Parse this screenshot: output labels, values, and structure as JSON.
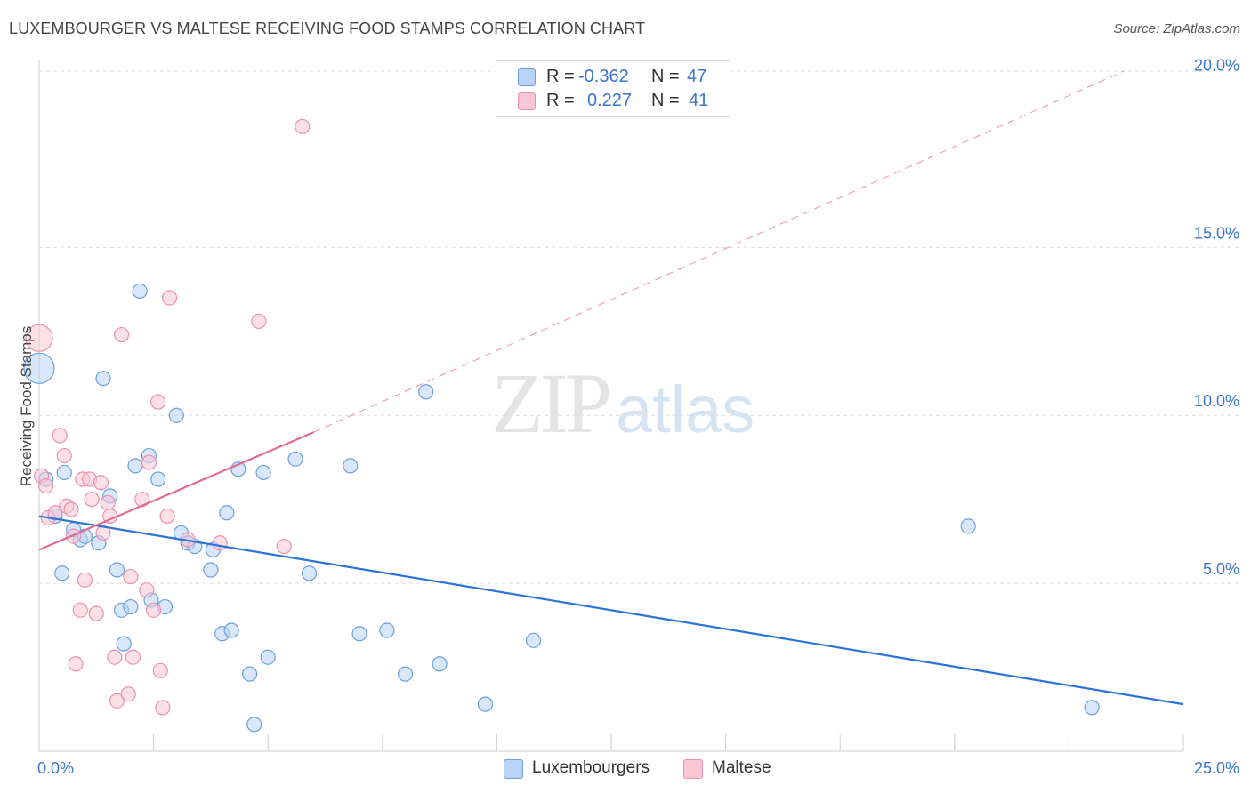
{
  "title": "LUXEMBOURGER VS MALTESE RECEIVING FOOD STAMPS CORRELATION CHART",
  "source": "Source: ZipAtlas.com",
  "watermark": {
    "zip": "ZIP",
    "atlas": "atlas"
  },
  "legend_top": [
    {
      "r_label": "R =",
      "r_value": "-0.362",
      "n_label": "N =",
      "n_value": "47"
    },
    {
      "r_label": "R =",
      "r_value": "0.227",
      "n_label": "N =",
      "n_value": "41"
    }
  ],
  "legend_bottom": [
    "Luxembourgers",
    "Maltese"
  ],
  "colors": {
    "blue_fill": "#b8d3f5",
    "blue_stroke": "#6b9fdf",
    "blue_line": "#2d72d6",
    "pink_fill": "#f8c6d5",
    "pink_stroke": "#ec91ad",
    "pink_line": "#e36a91",
    "axis_text": "#3a76d0",
    "grid": "#dcdcdc"
  },
  "chart_data": {
    "type": "scatter",
    "title": "LUXEMBOURGER VS MALTESE RECEIVING FOOD STAMPS CORRELATION CHART",
    "xlabel": "",
    "ylabel": "Receiving Food Stamps",
    "xlim": [
      0,
      25
    ],
    "ylim": [
      0,
      20.5
    ],
    "x_ticks": [
      0,
      2.5,
      5,
      7.5,
      10,
      12.5,
      15,
      17.5,
      20,
      22.5,
      25
    ],
    "x_tick_labels": [
      "0.0%",
      "",
      "",
      "",
      "",
      "",
      "",
      "",
      "",
      "",
      "25.0%"
    ],
    "y_ticks": [
      5,
      10,
      15,
      20
    ],
    "y_tick_labels": [
      "5.0%",
      "10.0%",
      "15.0%",
      "20.0%"
    ],
    "grid": true,
    "legend_position": "bottom",
    "series": [
      {
        "name": "Luxembourgers",
        "points": [
          [
            0.0,
            11.4,
            34
          ],
          [
            0.15,
            8.1,
            16
          ],
          [
            0.35,
            7.0,
            16
          ],
          [
            0.55,
            8.3,
            16
          ],
          [
            0.75,
            6.6,
            16
          ],
          [
            0.9,
            6.3,
            16
          ],
          [
            1.0,
            6.4,
            16
          ],
          [
            0.5,
            5.3,
            16
          ],
          [
            1.3,
            6.2,
            16
          ],
          [
            1.4,
            11.1,
            16
          ],
          [
            1.55,
            7.6,
            16
          ],
          [
            1.7,
            5.4,
            16
          ],
          [
            1.8,
            4.2,
            16
          ],
          [
            1.85,
            3.2,
            16
          ],
          [
            2.0,
            4.3,
            16
          ],
          [
            2.1,
            8.5,
            16
          ],
          [
            2.2,
            13.7,
            16
          ],
          [
            2.4,
            8.8,
            16
          ],
          [
            2.45,
            4.5,
            16
          ],
          [
            2.6,
            8.1,
            16
          ],
          [
            2.75,
            4.3,
            16
          ],
          [
            3.0,
            10.0,
            16
          ],
          [
            3.1,
            6.5,
            16
          ],
          [
            3.25,
            6.2,
            16
          ],
          [
            3.4,
            6.1,
            16
          ],
          [
            3.75,
            5.4,
            16
          ],
          [
            3.8,
            6.0,
            16
          ],
          [
            4.0,
            3.5,
            16
          ],
          [
            4.1,
            7.1,
            16
          ],
          [
            4.2,
            3.6,
            16
          ],
          [
            4.35,
            8.4,
            16
          ],
          [
            4.6,
            2.3,
            16
          ],
          [
            4.7,
            0.8,
            16
          ],
          [
            4.9,
            8.3,
            16
          ],
          [
            5.0,
            2.8,
            16
          ],
          [
            5.6,
            8.7,
            16
          ],
          [
            5.9,
            5.3,
            16
          ],
          [
            6.8,
            8.5,
            16
          ],
          [
            7.0,
            3.5,
            16
          ],
          [
            7.6,
            3.6,
            16
          ],
          [
            8.0,
            2.3,
            16
          ],
          [
            8.45,
            10.7,
            16
          ],
          [
            8.75,
            2.6,
            16
          ],
          [
            9.75,
            1.4,
            16
          ],
          [
            10.8,
            3.3,
            16
          ],
          [
            20.3,
            6.7,
            16
          ],
          [
            23.0,
            1.3,
            16
          ]
        ]
      },
      {
        "name": "Maltese",
        "points": [
          [
            0.0,
            12.3,
            30
          ],
          [
            0.05,
            8.2,
            16
          ],
          [
            0.15,
            7.9,
            16
          ],
          [
            0.2,
            6.95,
            16
          ],
          [
            0.35,
            7.1,
            16
          ],
          [
            0.45,
            9.4,
            16
          ],
          [
            0.55,
            8.8,
            16
          ],
          [
            0.6,
            7.3,
            16
          ],
          [
            0.7,
            7.2,
            16
          ],
          [
            0.75,
            6.4,
            16
          ],
          [
            0.8,
            2.6,
            16
          ],
          [
            0.9,
            4.2,
            16
          ],
          [
            0.95,
            8.1,
            16
          ],
          [
            1.0,
            5.1,
            16
          ],
          [
            1.1,
            8.1,
            16
          ],
          [
            1.15,
            7.5,
            16
          ],
          [
            1.25,
            4.1,
            16
          ],
          [
            1.35,
            8.0,
            16
          ],
          [
            1.4,
            6.5,
            16
          ],
          [
            1.5,
            7.4,
            16
          ],
          [
            1.55,
            7.0,
            16
          ],
          [
            1.65,
            2.8,
            16
          ],
          [
            1.7,
            1.5,
            16
          ],
          [
            1.8,
            12.4,
            16
          ],
          [
            1.95,
            1.7,
            16
          ],
          [
            2.0,
            5.2,
            16
          ],
          [
            2.05,
            2.8,
            16
          ],
          [
            2.25,
            7.5,
            16
          ],
          [
            2.35,
            4.8,
            16
          ],
          [
            2.4,
            8.6,
            16
          ],
          [
            2.5,
            4.2,
            16
          ],
          [
            2.6,
            10.4,
            16
          ],
          [
            2.65,
            2.4,
            16
          ],
          [
            2.7,
            1.3,
            16
          ],
          [
            2.8,
            7.0,
            16
          ],
          [
            2.85,
            13.5,
            16
          ],
          [
            3.25,
            6.3,
            16
          ],
          [
            3.95,
            6.2,
            16
          ],
          [
            4.8,
            12.8,
            16
          ],
          [
            5.35,
            6.1,
            16
          ],
          [
            5.75,
            18.6,
            16
          ]
        ]
      }
    ],
    "trend_lines": [
      {
        "series": "Luxembourgers",
        "x0": 0,
        "y0": 7.0,
        "x1": 25,
        "y1": 1.4,
        "style": "solid"
      },
      {
        "series": "Maltese",
        "x0": 0,
        "y0": 6.0,
        "x1": 6.0,
        "y1": 9.5,
        "style": "solid"
      },
      {
        "series": "Maltese",
        "x0": 6.0,
        "y0": 9.5,
        "x1": 23.7,
        "y1": 20.25,
        "style": "dashed"
      }
    ]
  }
}
